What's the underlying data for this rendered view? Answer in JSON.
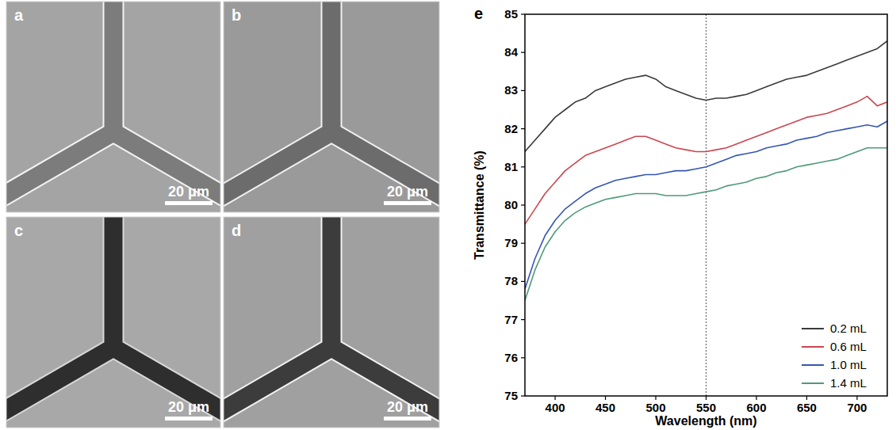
{
  "panels": [
    {
      "label": "a",
      "scale_bar": "20 μm"
    },
    {
      "label": "b",
      "scale_bar": "20 μm"
    },
    {
      "label": "c",
      "scale_bar": "20 μm"
    },
    {
      "label": "d",
      "scale_bar": "20 μm"
    }
  ],
  "chart_data": {
    "type": "line",
    "panel_label": "e",
    "x_label": "Wavelength (nm)",
    "y_label": "Transmittance (%)",
    "x": [
      370,
      380,
      390,
      400,
      410,
      420,
      430,
      440,
      450,
      460,
      470,
      480,
      490,
      500,
      510,
      520,
      530,
      540,
      550,
      560,
      570,
      580,
      590,
      600,
      610,
      620,
      630,
      640,
      650,
      660,
      670,
      680,
      690,
      700,
      710,
      720,
      730
    ],
    "xlim": [
      370,
      730
    ],
    "xticks": [
      400,
      450,
      500,
      550,
      600,
      650,
      700
    ],
    "ylim": [
      75,
      85
    ],
    "yticks": [
      75,
      76,
      77,
      78,
      79,
      80,
      81,
      82,
      83,
      84,
      85
    ],
    "reference_x": 550,
    "legend": "lower right",
    "series": [
      {
        "name": "0.2 mL",
        "color": "#3a3a3a",
        "values": [
          81.4,
          81.7,
          82.0,
          82.3,
          82.5,
          82.7,
          82.8,
          83.0,
          83.1,
          83.2,
          83.3,
          83.35,
          83.4,
          83.3,
          83.1,
          83.0,
          82.9,
          82.8,
          82.75,
          82.8,
          82.8,
          82.85,
          82.9,
          83.0,
          83.1,
          83.2,
          83.3,
          83.35,
          83.4,
          83.5,
          83.6,
          83.7,
          83.8,
          83.9,
          84.0,
          84.1,
          84.3
        ]
      },
      {
        "name": "0.6 mL",
        "color": "#c9464f",
        "values": [
          79.5,
          79.9,
          80.3,
          80.6,
          80.9,
          81.1,
          81.3,
          81.4,
          81.5,
          81.6,
          81.7,
          81.8,
          81.8,
          81.7,
          81.6,
          81.5,
          81.45,
          81.4,
          81.4,
          81.45,
          81.5,
          81.6,
          81.7,
          81.8,
          81.9,
          82.0,
          82.1,
          82.2,
          82.3,
          82.35,
          82.4,
          82.5,
          82.6,
          82.7,
          82.85,
          82.6,
          82.7
        ]
      },
      {
        "name": "1.0 mL",
        "color": "#3457b0",
        "values": [
          77.8,
          78.6,
          79.2,
          79.6,
          79.9,
          80.1,
          80.3,
          80.45,
          80.55,
          80.65,
          80.7,
          80.75,
          80.8,
          80.8,
          80.85,
          80.9,
          80.9,
          80.95,
          81.0,
          81.1,
          81.2,
          81.3,
          81.35,
          81.4,
          81.5,
          81.55,
          81.6,
          81.7,
          81.75,
          81.8,
          81.9,
          81.95,
          82.0,
          82.05,
          82.1,
          82.05,
          82.2
        ]
      },
      {
        "name": "1.4 mL",
        "color": "#4f9a78",
        "values": [
          77.5,
          78.3,
          78.9,
          79.3,
          79.6,
          79.8,
          79.95,
          80.05,
          80.15,
          80.2,
          80.25,
          80.3,
          80.3,
          80.3,
          80.25,
          80.25,
          80.25,
          80.3,
          80.35,
          80.4,
          80.5,
          80.55,
          80.6,
          80.7,
          80.75,
          80.85,
          80.9,
          81.0,
          81.05,
          81.1,
          81.15,
          81.2,
          81.3,
          81.4,
          81.5,
          81.5,
          81.5
        ]
      }
    ]
  }
}
